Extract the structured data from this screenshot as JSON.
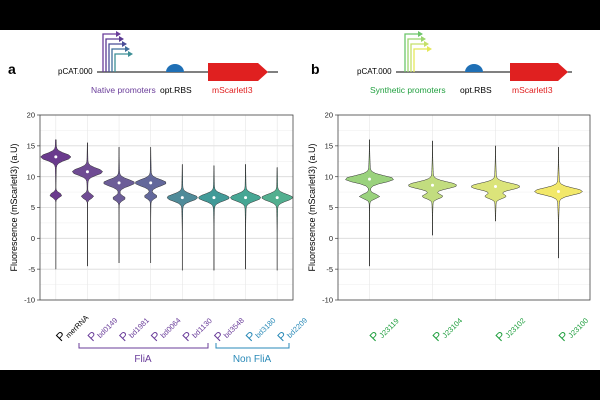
{
  "colors": {
    "purple": "#6a3d9a",
    "blue": "#2a8ab8",
    "green": "#22a040",
    "red": "#e02020",
    "rbs_blue": "#1f6fb5",
    "native_fills": [
      "#6a3b8d",
      "#6f4b93",
      "#6c5d98",
      "#63689b",
      "#4f8b99",
      "#419a98",
      "#46a694",
      "#52af8f"
    ],
    "synthetic_fills": [
      "#9ad27d",
      "#c2dd7f",
      "#dbe47a",
      "#f2e86a"
    ]
  },
  "panel_a": {
    "letter": "a",
    "construct": {
      "backbone": "pCAT.000",
      "promoter_label": "Native promoters",
      "rbs_label": "opt.RBS",
      "gene_label": "mScarletI3"
    },
    "groups": [
      {
        "label": "FliA"
      },
      {
        "label": "Non FliA"
      }
    ]
  },
  "panel_b": {
    "letter": "b",
    "construct": {
      "backbone": "pCAT.000",
      "promoter_label": "Synthetic promoters",
      "rbs_label": "opt.RBS",
      "gene_label": "mScarletI3"
    }
  },
  "chart_data": [
    {
      "type": "violin",
      "panel": "a",
      "ylabel": "Fluorescence (mScarletI3) (a.U)",
      "xlabel": "",
      "ylim": [
        -10,
        20
      ],
      "yticks": [
        -10,
        -5,
        0,
        5,
        10,
        15,
        20
      ],
      "grid": true,
      "categories": [
        {
          "prefix": "P",
          "sub": "merRNA",
          "median": 13.2,
          "peak2": 7.0,
          "min": -5.0,
          "max": 16.0,
          "color_key": "black"
        },
        {
          "prefix": "P",
          "sub": "bd0149",
          "median": 10.8,
          "peak2": 6.8,
          "min": -4.5,
          "max": 15.5,
          "color_key": "purple"
        },
        {
          "prefix": "P",
          "sub": "bd1981",
          "median": 9.0,
          "peak2": 6.5,
          "min": -4.0,
          "max": 14.8,
          "color_key": "purple"
        },
        {
          "prefix": "P",
          "sub": "bd0064",
          "median": 9.0,
          "peak2": 6.8,
          "min": -4.0,
          "max": 14.8,
          "color_key": "purple"
        },
        {
          "prefix": "P",
          "sub": "bd1130",
          "median": 6.6,
          "peak2": null,
          "min": -5.2,
          "max": 12.0,
          "color_key": "purple"
        },
        {
          "prefix": "P",
          "sub": "bd3548",
          "median": 6.6,
          "peak2": null,
          "min": -5.2,
          "max": 11.8,
          "color_key": "purple"
        },
        {
          "prefix": "P",
          "sub": "bd3180",
          "median": 6.6,
          "peak2": null,
          "min": -5.0,
          "max": 12.0,
          "color_key": "blue"
        },
        {
          "prefix": "P",
          "sub": "bd2209",
          "median": 6.6,
          "peak2": null,
          "min": -5.2,
          "max": 11.5,
          "color_key": "blue"
        }
      ]
    },
    {
      "type": "violin",
      "panel": "b",
      "ylabel": "Fluorescence (mScarletI3) (a.U)",
      "xlabel": "",
      "ylim": [
        -10,
        20
      ],
      "yticks": [
        -10,
        -5,
        0,
        5,
        10,
        15,
        20
      ],
      "grid": true,
      "categories": [
        {
          "prefix": "P",
          "sub": "J23119",
          "median": 9.6,
          "peak2": 6.8,
          "min": -4.5,
          "max": 16.0,
          "color_key": "green"
        },
        {
          "prefix": "P",
          "sub": "J23104",
          "median": 8.6,
          "peak2": 6.8,
          "min": 0.5,
          "max": 15.8,
          "color_key": "green"
        },
        {
          "prefix": "P",
          "sub": "J23102",
          "median": 8.4,
          "peak2": 6.8,
          "min": 2.8,
          "max": 15.0,
          "color_key": "green"
        },
        {
          "prefix": "P",
          "sub": "J23100",
          "median": 7.6,
          "peak2": null,
          "min": -3.2,
          "max": 14.8,
          "color_key": "green"
        }
      ]
    }
  ]
}
